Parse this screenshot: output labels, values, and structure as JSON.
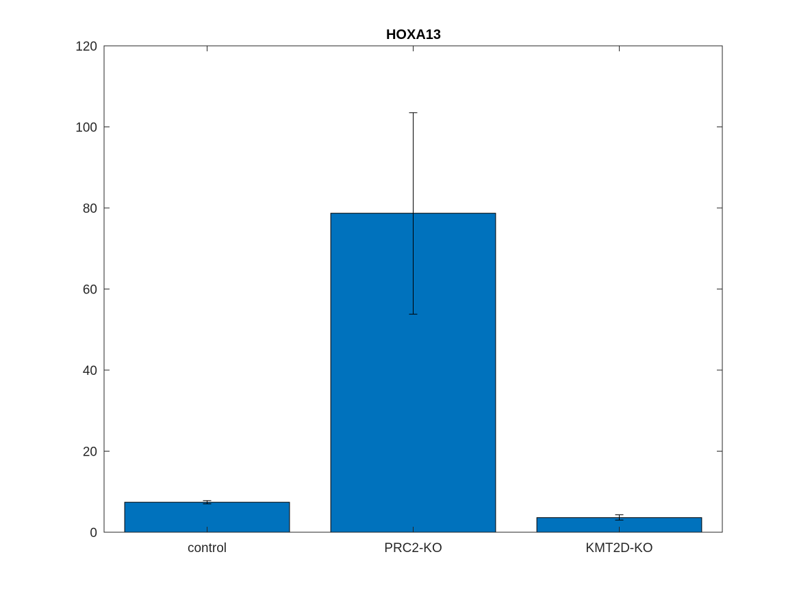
{
  "chart_data": {
    "type": "bar",
    "title": "HOXA13",
    "xlabel": "",
    "ylabel": "",
    "categories": [
      "control",
      "PRC2-KO",
      "KMT2D-KO"
    ],
    "values": [
      7.4,
      78.7,
      3.6
    ],
    "error_low": [
      7.0,
      53.8,
      3.0
    ],
    "error_high": [
      7.8,
      103.5,
      4.3
    ],
    "ylim": [
      0,
      120
    ],
    "yticks": [
      0,
      20,
      40,
      60,
      80,
      100,
      120
    ],
    "ytick_labels": [
      "0",
      "20",
      "40",
      "60",
      "80",
      "100",
      "120"
    ],
    "grid": false,
    "bar_color": "#0072BD",
    "axis_color": "#262626"
  }
}
